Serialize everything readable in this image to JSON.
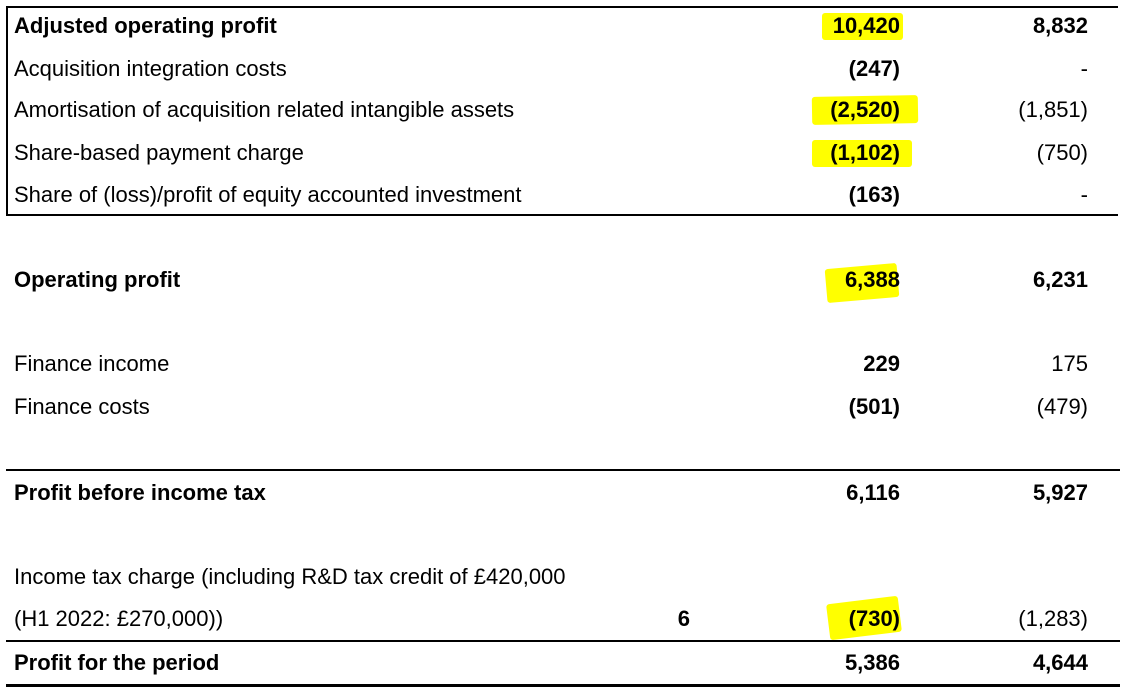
{
  "statement": {
    "rows": [
      {
        "label": "Adjusted operating profit",
        "note": "",
        "current": "10,420",
        "prior": "8,832",
        "bold": true,
        "highlighted": true
      },
      {
        "label": "Acquisition integration costs",
        "note": "",
        "current": "(247)",
        "prior": "-",
        "bold": false,
        "highlighted": false
      },
      {
        "label": "Amortisation of acquisition related intangible assets",
        "note": "",
        "current": "(2,520)",
        "prior": "(1,851)",
        "bold": false,
        "highlighted": true
      },
      {
        "label": "Share-based payment charge",
        "note": "",
        "current": "(1,102)",
        "prior": "(750)",
        "bold": false,
        "highlighted": true
      },
      {
        "label": "Share of (loss)/profit of equity accounted investment",
        "note": "",
        "current": "(163)",
        "prior": "-",
        "bold": false,
        "highlighted": false
      },
      {
        "label": "Operating profit",
        "note": "",
        "current": "6,388",
        "prior": "6,231",
        "bold": true,
        "highlighted": true
      },
      {
        "label": "Finance income",
        "note": "",
        "current": "229",
        "prior": "175",
        "bold": false,
        "highlighted": false
      },
      {
        "label": "Finance costs",
        "note": "",
        "current": "(501)",
        "prior": "(479)",
        "bold": false,
        "highlighted": false
      },
      {
        "label": "Profit before income tax",
        "note": "",
        "current": "6,116",
        "prior": "5,927",
        "bold": true,
        "highlighted": false
      },
      {
        "label": "Income tax charge (including R&D tax credit of £420,000",
        "note": "",
        "current": "",
        "prior": "",
        "bold": false,
        "highlighted": false
      },
      {
        "label": "(H1 2022: £270,000))",
        "note": "6",
        "current": "(730)",
        "prior": "(1,283)",
        "bold": false,
        "highlighted": true
      },
      {
        "label": "Profit for the period",
        "note": "",
        "current": "5,386",
        "prior": "4,644",
        "bold": true,
        "highlighted": false
      }
    ]
  },
  "colors": {
    "highlight": "#ffff00",
    "text": "#000000",
    "rule": "#000000"
  }
}
